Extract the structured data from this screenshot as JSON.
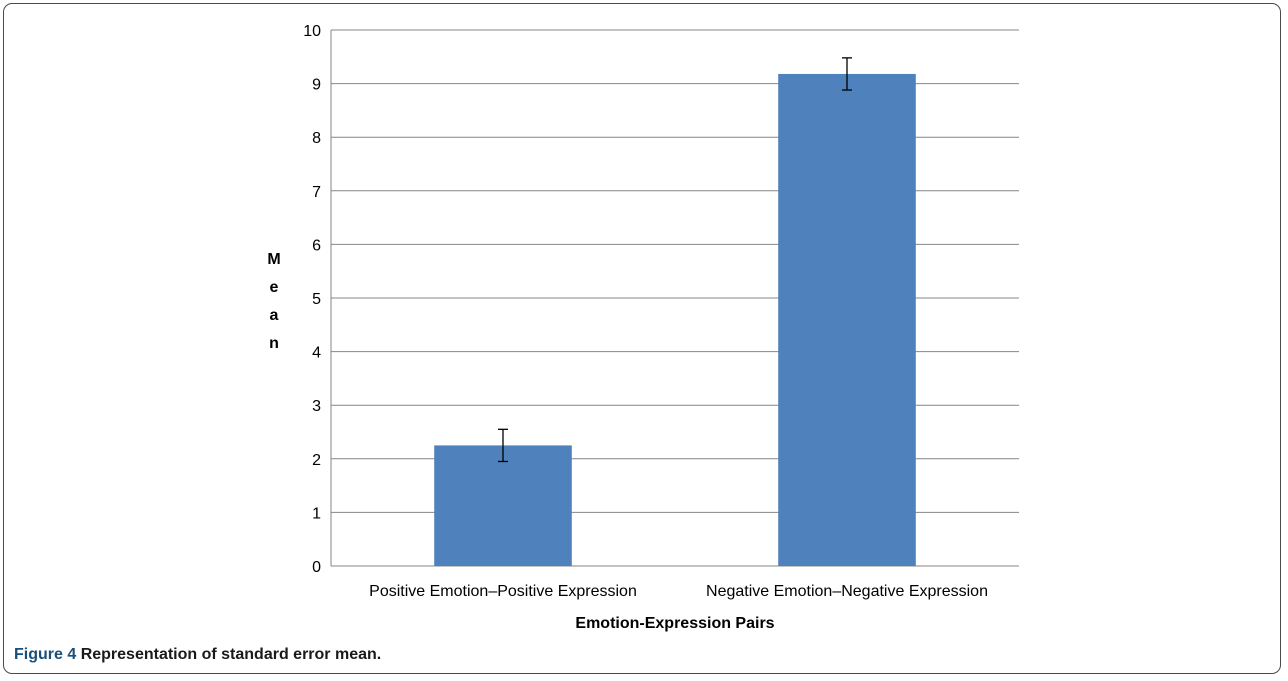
{
  "chart_data": {
    "type": "bar",
    "categories": [
      "Positive Emotion–Positive Expression",
      "Negative Emotion–Negative Expression"
    ],
    "values": [
      2.25,
      9.18
    ],
    "error": [
      0.3,
      0.3
    ],
    "xlabel": "Emotion-Expression Pairs",
    "ylabel": "Mean",
    "ylim": [
      0,
      10
    ],
    "yticks": [
      0,
      1,
      2,
      3,
      4,
      5,
      6,
      7,
      8,
      9,
      10
    ],
    "grid": true,
    "bar_color": "#4f81bd",
    "grid_color": "#868686"
  },
  "caption": {
    "label": "Figure 4",
    "text": "Representation of standard error mean."
  }
}
